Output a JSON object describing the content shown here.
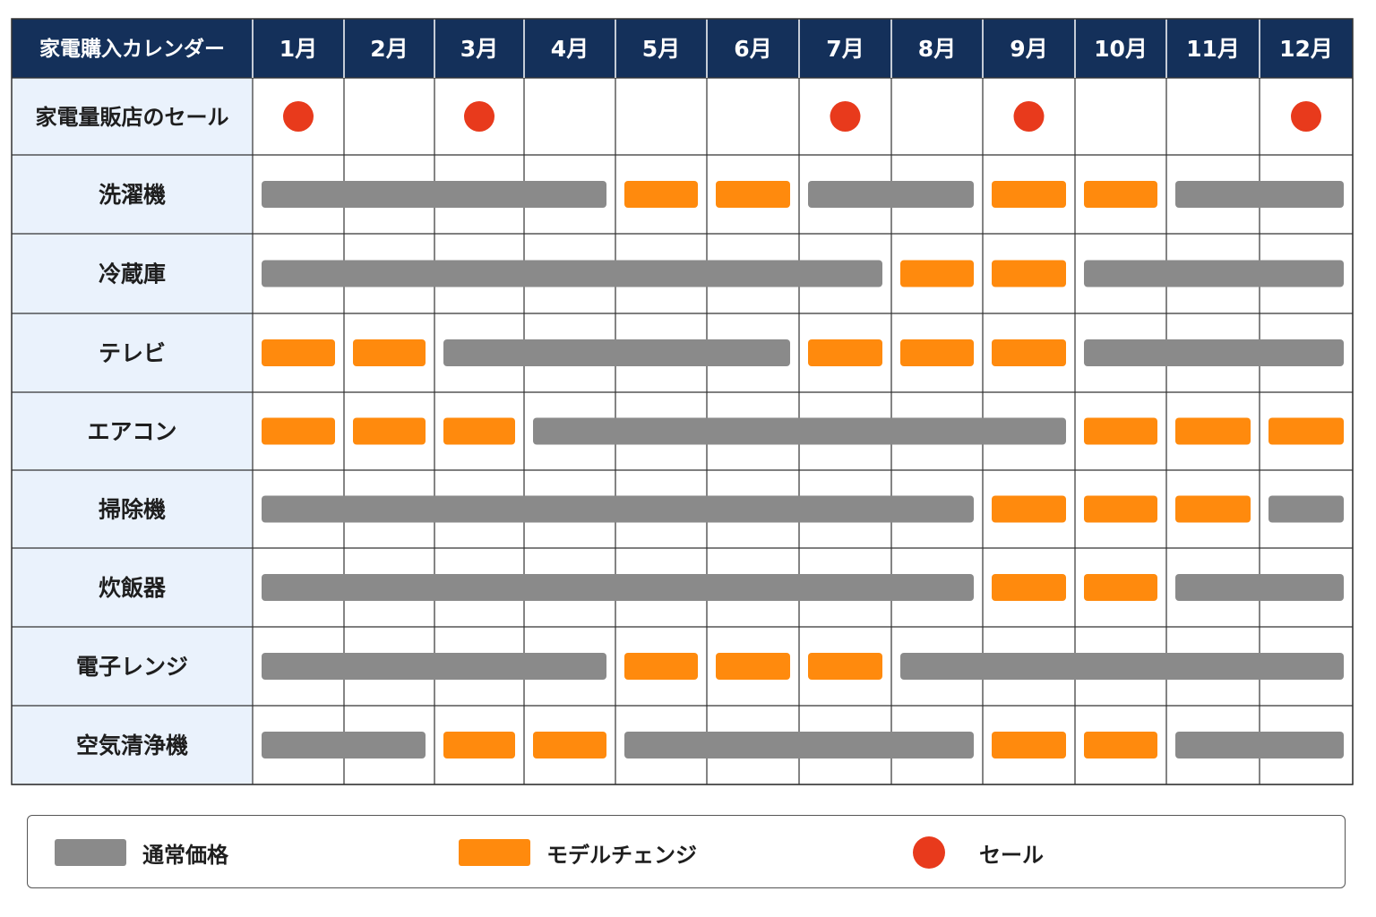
{
  "chart_data": {
    "type": "table",
    "title": "家電購入カレンダー",
    "months": [
      "1月",
      "2月",
      "3月",
      "4月",
      "5月",
      "6月",
      "7月",
      "8月",
      "9月",
      "10月",
      "11月",
      "12月"
    ],
    "sale": {
      "label": "家電量販店のセール",
      "months": [
        1,
        3,
        7,
        9,
        12
      ]
    },
    "rows": [
      {
        "label": "洗濯機",
        "segments": [
          {
            "start": 1,
            "end": 4,
            "status": "normal"
          },
          {
            "start": 5,
            "end": 5,
            "status": "model_change"
          },
          {
            "start": 6,
            "end": 6,
            "status": "model_change"
          },
          {
            "start": 7,
            "end": 8,
            "status": "normal"
          },
          {
            "start": 9,
            "end": 9,
            "status": "model_change"
          },
          {
            "start": 10,
            "end": 10,
            "status": "model_change"
          },
          {
            "start": 11,
            "end": 12,
            "status": "normal"
          }
        ]
      },
      {
        "label": "冷蔵庫",
        "segments": [
          {
            "start": 1,
            "end": 7,
            "status": "normal"
          },
          {
            "start": 8,
            "end": 8,
            "status": "model_change"
          },
          {
            "start": 9,
            "end": 9,
            "status": "model_change"
          },
          {
            "start": 10,
            "end": 12,
            "status": "normal"
          }
        ]
      },
      {
        "label": "テレビ",
        "segments": [
          {
            "start": 1,
            "end": 1,
            "status": "model_change"
          },
          {
            "start": 2,
            "end": 2,
            "status": "model_change"
          },
          {
            "start": 3,
            "end": 6,
            "status": "normal"
          },
          {
            "start": 7,
            "end": 7,
            "status": "model_change"
          },
          {
            "start": 8,
            "end": 8,
            "status": "model_change"
          },
          {
            "start": 9,
            "end": 9,
            "status": "model_change"
          },
          {
            "start": 10,
            "end": 12,
            "status": "normal"
          }
        ]
      },
      {
        "label": "エアコン",
        "segments": [
          {
            "start": 1,
            "end": 1,
            "status": "model_change"
          },
          {
            "start": 2,
            "end": 2,
            "status": "model_change"
          },
          {
            "start": 3,
            "end": 3,
            "status": "model_change"
          },
          {
            "start": 4,
            "end": 9,
            "status": "normal"
          },
          {
            "start": 10,
            "end": 10,
            "status": "model_change"
          },
          {
            "start": 11,
            "end": 11,
            "status": "model_change"
          },
          {
            "start": 12,
            "end": 12,
            "status": "model_change"
          }
        ]
      },
      {
        "label": "掃除機",
        "segments": [
          {
            "start": 1,
            "end": 8,
            "status": "normal"
          },
          {
            "start": 9,
            "end": 9,
            "status": "model_change"
          },
          {
            "start": 10,
            "end": 10,
            "status": "model_change"
          },
          {
            "start": 11,
            "end": 11,
            "status": "model_change"
          },
          {
            "start": 12,
            "end": 12,
            "status": "normal"
          }
        ]
      },
      {
        "label": "炊飯器",
        "segments": [
          {
            "start": 1,
            "end": 8,
            "status": "normal"
          },
          {
            "start": 9,
            "end": 9,
            "status": "model_change"
          },
          {
            "start": 10,
            "end": 10,
            "status": "model_change"
          },
          {
            "start": 11,
            "end": 12,
            "status": "normal"
          }
        ]
      },
      {
        "label": "電子レンジ",
        "segments": [
          {
            "start": 1,
            "end": 4,
            "status": "normal"
          },
          {
            "start": 5,
            "end": 5,
            "status": "model_change"
          },
          {
            "start": 6,
            "end": 6,
            "status": "model_change"
          },
          {
            "start": 7,
            "end": 7,
            "status": "model_change"
          },
          {
            "start": 8,
            "end": 12,
            "status": "normal"
          }
        ]
      },
      {
        "label": "空気清浄機",
        "segments": [
          {
            "start": 1,
            "end": 2,
            "status": "normal"
          },
          {
            "start": 3,
            "end": 3,
            "status": "model_change"
          },
          {
            "start": 4,
            "end": 4,
            "status": "model_change"
          },
          {
            "start": 5,
            "end": 8,
            "status": "normal"
          },
          {
            "start": 9,
            "end": 9,
            "status": "model_change"
          },
          {
            "start": 10,
            "end": 10,
            "status": "model_change"
          },
          {
            "start": 11,
            "end": 12,
            "status": "normal"
          }
        ]
      }
    ],
    "legend": [
      {
        "key": "normal",
        "label": "通常価格"
      },
      {
        "key": "model_change",
        "label": "モデルチェンジ"
      },
      {
        "key": "sale",
        "label": "セール"
      }
    ],
    "colors": {
      "header_bg": "#14305a",
      "label_bg": "#eaf2fc",
      "normal": "#8a8a8a",
      "model_change": "#ff8a0d",
      "sale": "#e83a1c",
      "grid": "#333333"
    }
  }
}
